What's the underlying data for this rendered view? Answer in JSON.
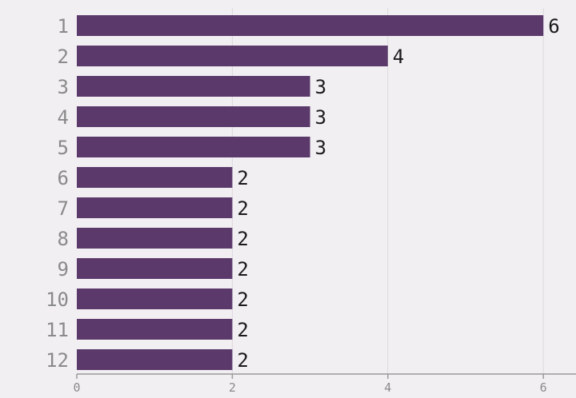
{
  "chart_data": {
    "type": "bar",
    "orientation": "horizontal",
    "title": "",
    "xlabel": "",
    "ylabel": "",
    "categories": [
      "1",
      "2",
      "3",
      "4",
      "5",
      "6",
      "7",
      "8",
      "9",
      "10",
      "11",
      "12"
    ],
    "values": [
      6,
      4,
      3,
      3,
      3,
      2,
      2,
      2,
      2,
      2,
      2,
      2
    ],
    "value_labels": [
      "6",
      "4",
      "3",
      "3",
      "3",
      "2",
      "2",
      "2",
      "2",
      "2",
      "2",
      "2"
    ],
    "xlim": [
      0,
      6.25
    ],
    "xticks": [
      0,
      2,
      4,
      6
    ],
    "xtick_labels": [
      "0",
      "2",
      "4",
      "6"
    ],
    "grid": "vertical",
    "legend": "none",
    "colors": {
      "bar": "#5b3a6b",
      "background": "#f2eff3"
    }
  }
}
